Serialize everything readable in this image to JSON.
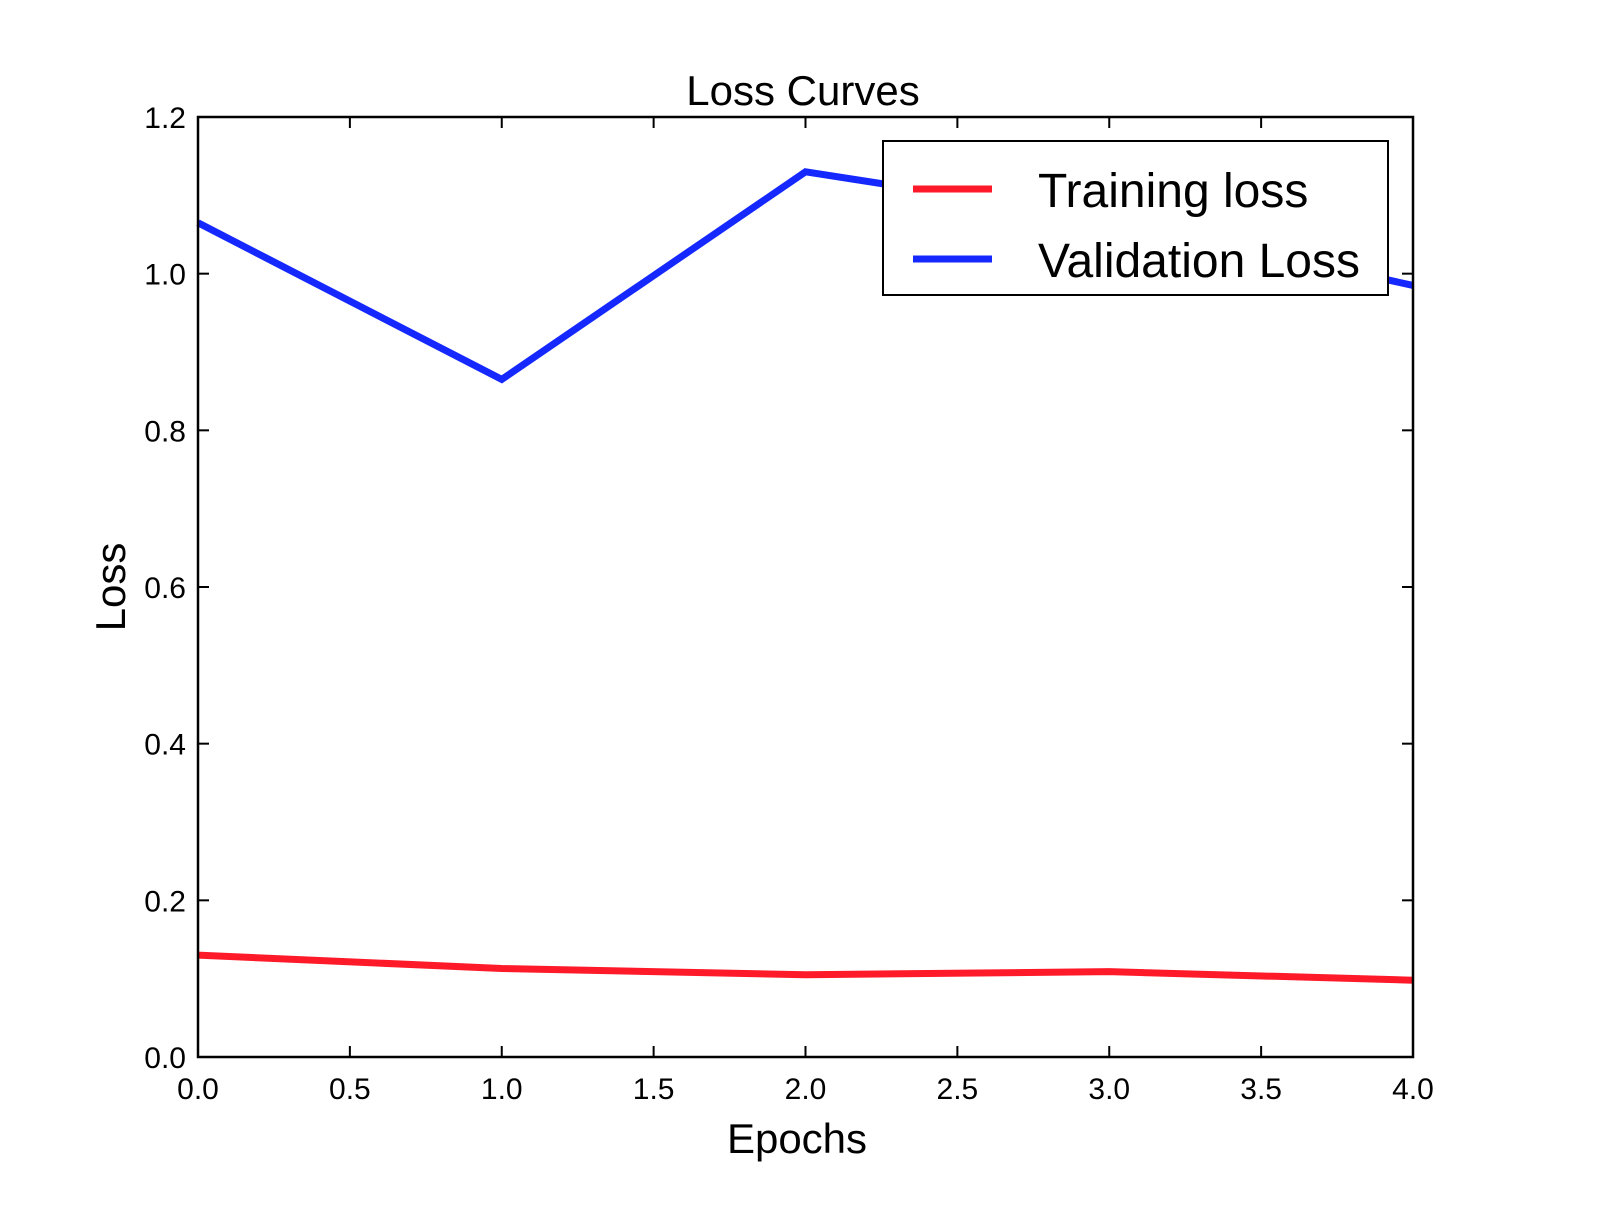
{
  "chart_data": {
    "type": "line",
    "title": "Loss Curves",
    "xlabel": "Epochs",
    "ylabel": "Loss",
    "xlim": [
      0.0,
      4.0
    ],
    "ylim": [
      0.0,
      1.2
    ],
    "xticks": [
      "0.0",
      "0.5",
      "1.0",
      "1.5",
      "2.0",
      "2.5",
      "3.0",
      "3.5",
      "4.0"
    ],
    "yticks": [
      "0.0",
      "0.2",
      "0.4",
      "0.6",
      "0.8",
      "1.0",
      "1.2"
    ],
    "grid": false,
    "legend_position": "top-right",
    "x": [
      0,
      1,
      2,
      3,
      4
    ],
    "series": [
      {
        "name": "Training loss",
        "color": "#ff1a2a",
        "values": [
          0.13,
          0.113,
          0.105,
          0.109,
          0.098
        ]
      },
      {
        "name": "Validation Loss",
        "color": "#1428ff",
        "values": [
          1.065,
          0.865,
          1.13,
          1.07,
          0.985
        ]
      }
    ]
  }
}
